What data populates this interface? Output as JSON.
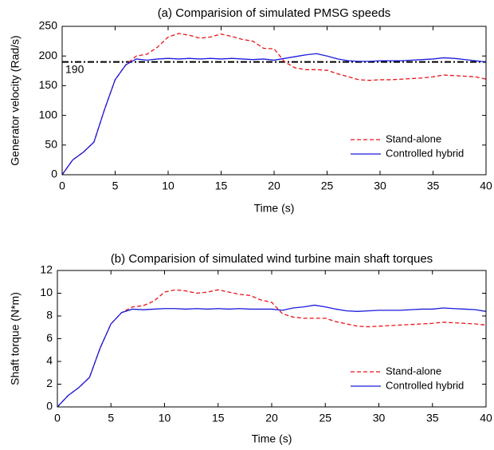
{
  "chart_data": [
    {
      "type": "line",
      "title": "(a) Comparision of simulated PMSG speeds",
      "x_label": "Time (s)",
      "y_label": "Generator velocity (Rad/s)",
      "x": [
        0,
        1,
        2,
        3,
        4,
        5,
        6,
        7,
        8,
        9,
        10,
        11,
        12,
        13,
        14,
        15,
        16,
        17,
        18,
        19,
        20,
        21,
        22,
        23,
        24,
        25,
        26,
        27,
        28,
        29,
        30,
        31,
        32,
        33,
        34,
        35,
        36,
        37,
        38,
        39,
        40
      ],
      "series": [
        {
          "name": "Stand-alone",
          "color": "#e8141a",
          "style": "dashed",
          "values": [
            0,
            25,
            38,
            55,
            110,
            160,
            185,
            200,
            203,
            215,
            232,
            238,
            235,
            230,
            232,
            237,
            233,
            228,
            225,
            213,
            212,
            190,
            180,
            177,
            177,
            176,
            170,
            165,
            160,
            159,
            160,
            160,
            161,
            162,
            163,
            165,
            168,
            167,
            166,
            165,
            161
          ]
        },
        {
          "name": "Controlled hybrid",
          "color": "#1a1adc",
          "style": "solid",
          "values": [
            0,
            25,
            38,
            55,
            110,
            160,
            185,
            195,
            193,
            195,
            196,
            195,
            196,
            195,
            196,
            195,
            196,
            195,
            194,
            195,
            193,
            196,
            199,
            202,
            204,
            200,
            195,
            192,
            191,
            191,
            192,
            192,
            192,
            193,
            194,
            195,
            197,
            196,
            194,
            192,
            190
          ]
        }
      ],
      "hline": 190,
      "xlim": [
        0,
        40
      ],
      "xticks": [
        0,
        5,
        10,
        15,
        20,
        25,
        30,
        35,
        40
      ],
      "ylim": [
        0,
        250
      ],
      "yticks": [
        0,
        50,
        100,
        150,
        200,
        250
      ],
      "legend": "lower right"
    },
    {
      "type": "line",
      "title": "(b) Comparision of simulated wind turbine main shaft torques",
      "x_label": "Time (s)",
      "y_label": "Shaft torque (N*m)",
      "x": [
        0,
        1,
        2,
        3,
        4,
        5,
        6,
        7,
        8,
        9,
        10,
        11,
        12,
        13,
        14,
        15,
        16,
        17,
        18,
        19,
        20,
        21,
        22,
        23,
        24,
        25,
        26,
        27,
        28,
        29,
        30,
        31,
        32,
        33,
        34,
        35,
        36,
        37,
        38,
        39,
        40
      ],
      "series": [
        {
          "name": "Stand-alone",
          "color": "#e8141a",
          "style": "dashed",
          "values": [
            0,
            1,
            1.7,
            2.6,
            5.2,
            7.3,
            8.3,
            8.8,
            8.9,
            9.3,
            10.1,
            10.3,
            10.2,
            10.0,
            10.1,
            10.3,
            10.1,
            9.9,
            9.8,
            9.4,
            9.2,
            8.2,
            7.9,
            7.8,
            7.8,
            7.8,
            7.5,
            7.3,
            7.1,
            7.05,
            7.1,
            7.15,
            7.2,
            7.25,
            7.3,
            7.35,
            7.45,
            7.4,
            7.35,
            7.3,
            7.2
          ]
        },
        {
          "name": "Controlled hybrid",
          "color": "#1a1adc",
          "style": "solid",
          "values": [
            0,
            1,
            1.7,
            2.6,
            5.2,
            7.3,
            8.3,
            8.6,
            8.55,
            8.6,
            8.65,
            8.65,
            8.6,
            8.65,
            8.6,
            8.65,
            8.6,
            8.65,
            8.6,
            8.6,
            8.6,
            8.5,
            8.7,
            8.8,
            8.95,
            8.8,
            8.6,
            8.45,
            8.4,
            8.45,
            8.5,
            8.5,
            8.5,
            8.55,
            8.6,
            8.6,
            8.7,
            8.65,
            8.6,
            8.55,
            8.4
          ]
        }
      ],
      "xlim": [
        0,
        40
      ],
      "xticks": [
        0,
        5,
        10,
        15,
        20,
        25,
        30,
        35,
        40
      ],
      "ylim": [
        0,
        12
      ],
      "yticks": [
        0,
        2,
        4,
        6,
        8,
        10,
        12
      ],
      "legend": "lower right"
    }
  ]
}
